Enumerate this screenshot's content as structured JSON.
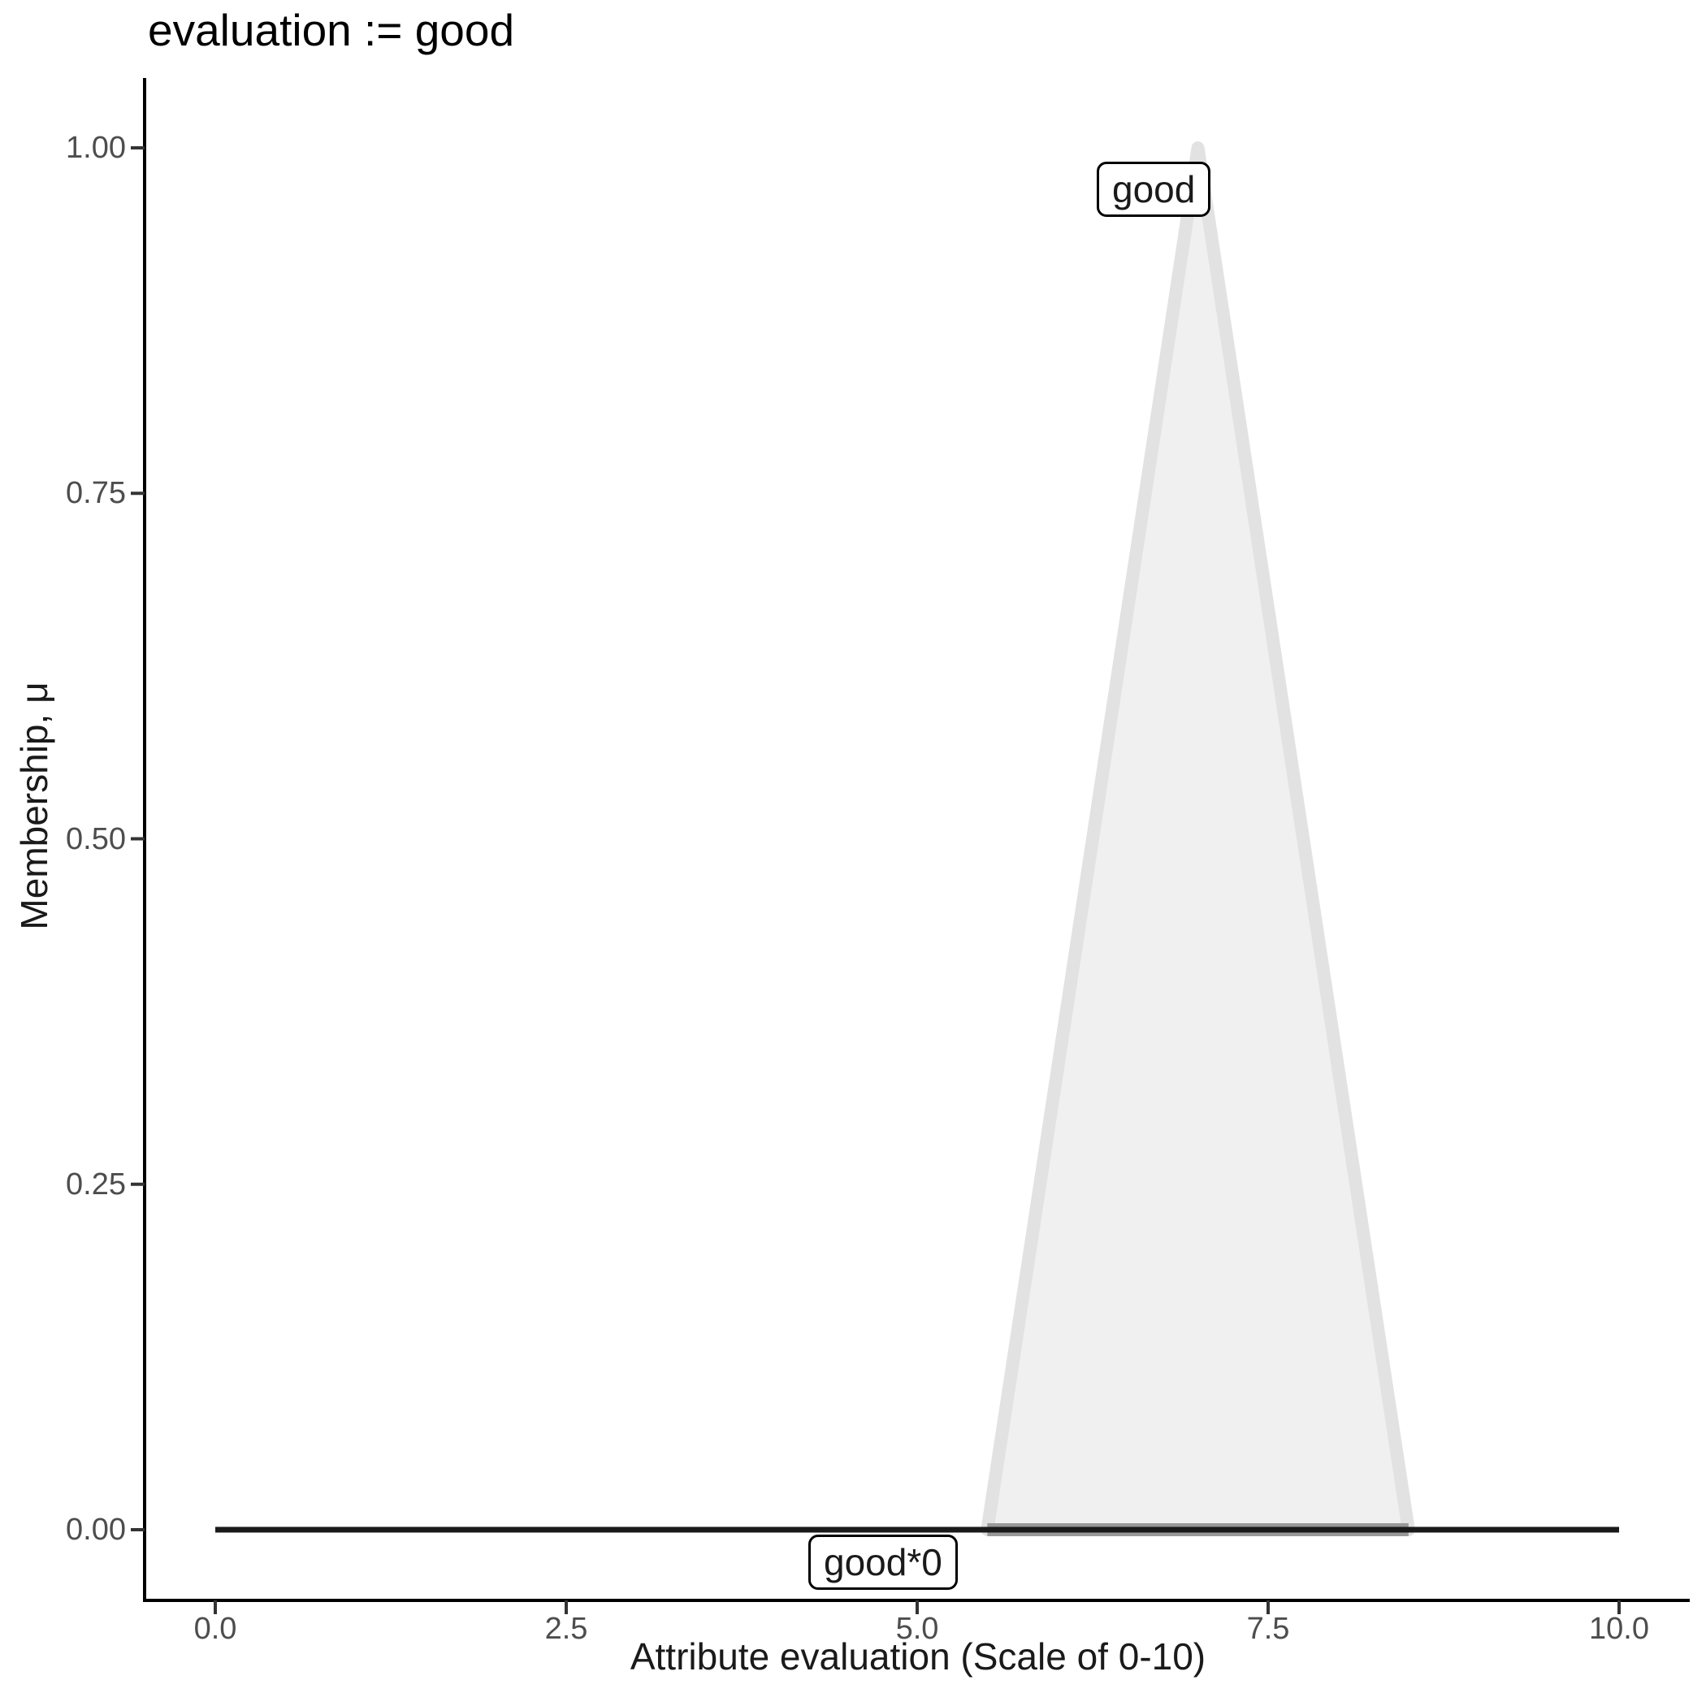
{
  "title": "evaluation := good",
  "axes": {
    "x": {
      "label": "Attribute evaluation (Scale of 0-10)",
      "tick_labels": [
        "0.0",
        "2.5",
        "5.0",
        "7.5",
        "10.0"
      ]
    },
    "y": {
      "label": "Membership, μ",
      "tick_labels": [
        "0.00",
        "0.25",
        "0.50",
        "0.75",
        "1.00"
      ]
    }
  },
  "annotations": {
    "peak_label": "good",
    "zero_label": "good*0"
  },
  "chart_data": {
    "type": "area",
    "title": "evaluation := good",
    "xlabel": "Attribute evaluation (Scale of 0-10)",
    "ylabel": "Membership, μ",
    "xlim": [
      0,
      10
    ],
    "ylim": [
      0,
      1
    ],
    "x_ticks": [
      0,
      2.5,
      5,
      7.5,
      10
    ],
    "y_ticks": [
      0,
      0.25,
      0.5,
      0.75,
      1
    ],
    "grid": false,
    "legend": "none",
    "series": [
      {
        "name": "good",
        "type": "area",
        "description": "triangular membership function",
        "points": [
          [
            5.5,
            0
          ],
          [
            7,
            1
          ],
          [
            8.5,
            0
          ]
        ],
        "fill": "#F0F0F0",
        "stroke": "#E2E2E2",
        "base_edge_color": "#999999",
        "annotation": "good"
      },
      {
        "name": "good*0",
        "type": "line",
        "description": "rule output clipped to zero",
        "points": [
          [
            0,
            0
          ],
          [
            10,
            0
          ]
        ],
        "stroke": "#1A1A1A",
        "annotation": "good*0"
      }
    ],
    "colors": {
      "axis": "#000000",
      "tick": "#333333",
      "tick_label": "#4D4D4D"
    }
  }
}
